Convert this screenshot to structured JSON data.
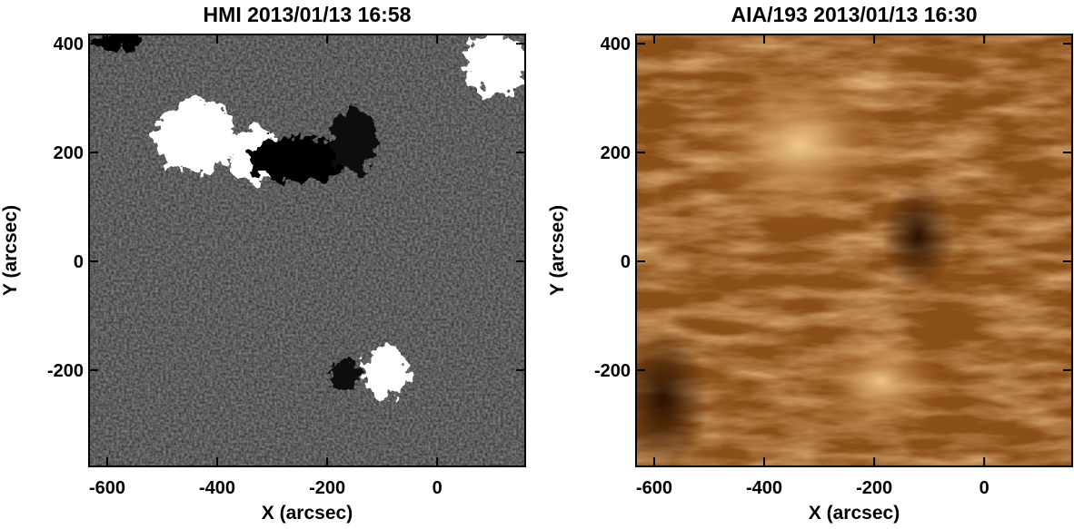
{
  "chart_data": [
    {
      "type": "image",
      "title": "HMI 2013/01/13 16:58",
      "xlabel": "X (arcsec)",
      "ylabel": "Y (arcsec)",
      "xlim": [
        -633,
        160
      ],
      "ylim": [
        -377,
        417
      ],
      "xticks": [
        -600,
        -400,
        -200,
        0
      ],
      "yticks": [
        -200,
        0,
        200,
        400
      ]
    },
    {
      "type": "image",
      "title": "AIA/193 2013/01/13 16:30",
      "xlabel": "X (arcsec)",
      "ylabel": "Y (arcsec)",
      "xlim": [
        -633,
        160
      ],
      "ylim": [
        -377,
        417
      ],
      "xticks": [
        -600,
        -400,
        -200,
        0
      ],
      "yticks": [
        -200,
        0,
        200,
        400
      ]
    }
  ]
}
